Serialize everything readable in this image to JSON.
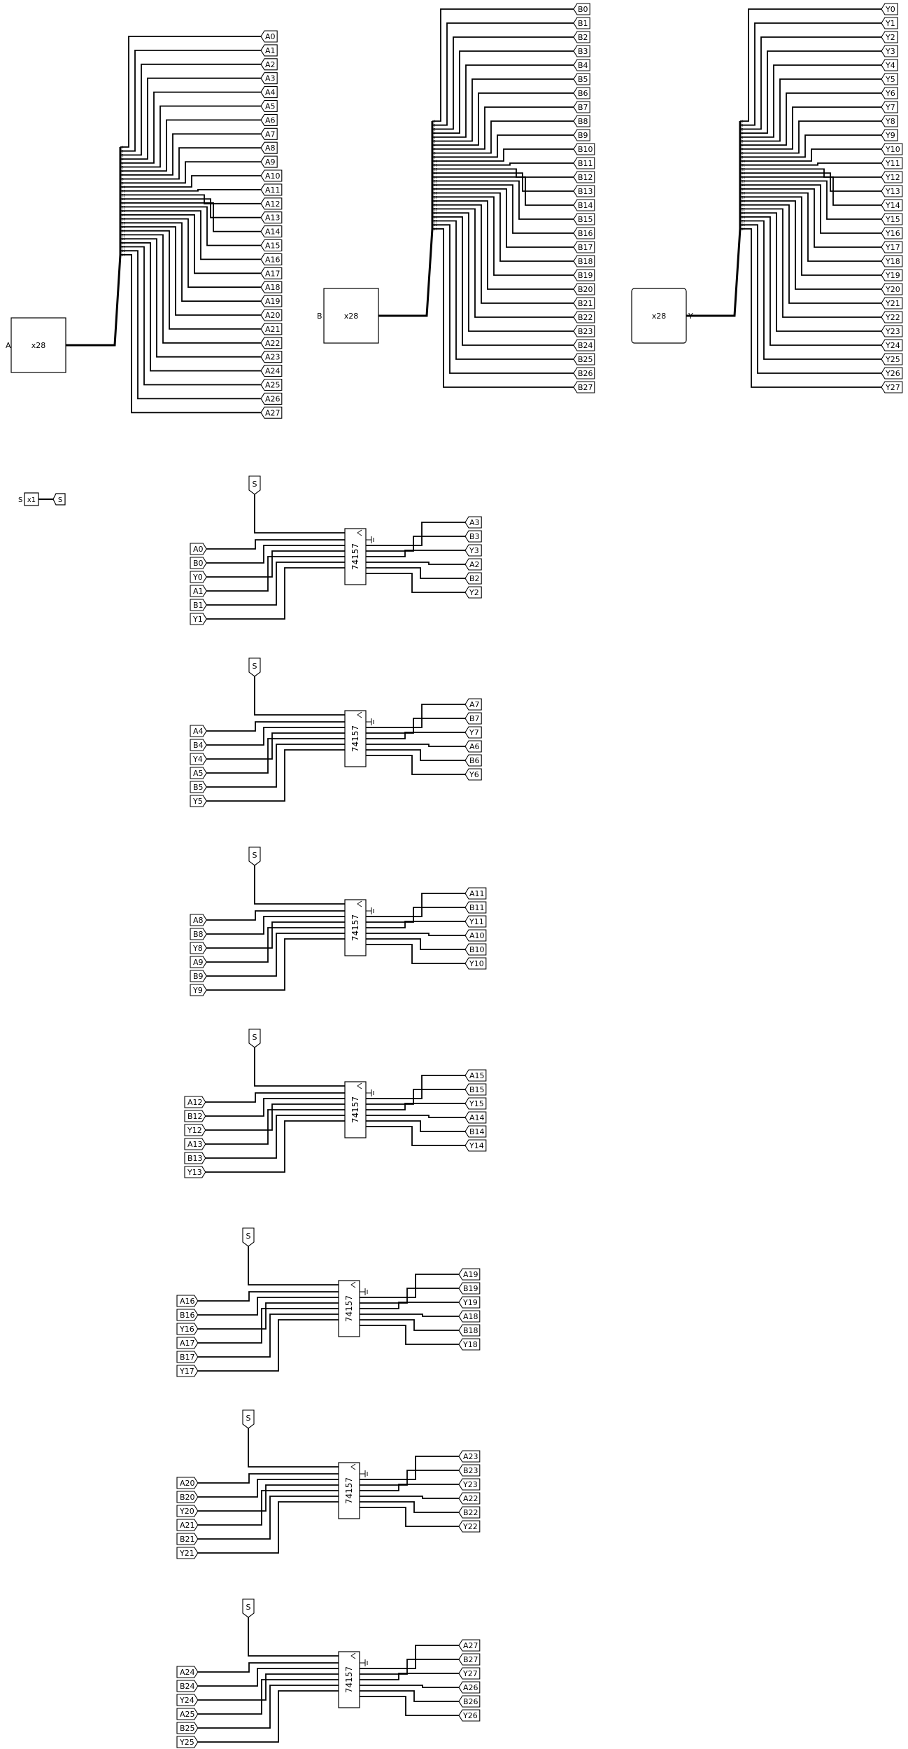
{
  "inputs": [
    {
      "id": "A",
      "pin_label": "A",
      "width_label": "x28",
      "prefix": "A"
    },
    {
      "id": "B",
      "pin_label": "B",
      "width_label": "x28",
      "prefix": "B"
    },
    {
      "id": "Y",
      "pin_label": "Y",
      "width_label": "x28",
      "prefix": "Y"
    }
  ],
  "select_input": {
    "pin_label": "S",
    "width_label": "x1",
    "tunnel_label": "S"
  },
  "chips": [
    {
      "label": "74157",
      "select_tunnel": "S",
      "left_tunnels": [
        "A0",
        "B0",
        "Y0",
        "A1",
        "B1",
        "Y1"
      ],
      "right_tunnels": [
        "A3",
        "B3",
        "Y3",
        "A2",
        "B2",
        "Y2"
      ]
    },
    {
      "label": "74157",
      "select_tunnel": "S",
      "left_tunnels": [
        "A4",
        "B4",
        "Y4",
        "A5",
        "B5",
        "Y5"
      ],
      "right_tunnels": [
        "A7",
        "B7",
        "Y7",
        "A6",
        "B6",
        "Y6"
      ]
    },
    {
      "label": "74157",
      "select_tunnel": "S",
      "left_tunnels": [
        "A8",
        "B8",
        "Y8",
        "A9",
        "B9",
        "Y9"
      ],
      "right_tunnels": [
        "A11",
        "B11",
        "Y11",
        "A10",
        "B10",
        "Y10"
      ]
    },
    {
      "label": "74157",
      "select_tunnel": "S",
      "left_tunnels": [
        "A12",
        "B12",
        "Y12",
        "A13",
        "B13",
        "Y13"
      ],
      "right_tunnels": [
        "A15",
        "B15",
        "Y15",
        "A14",
        "B14",
        "Y14"
      ]
    },
    {
      "label": "74157",
      "select_tunnel": "S",
      "left_tunnels": [
        "A16",
        "B16",
        "Y16",
        "A17",
        "B17",
        "Y17"
      ],
      "right_tunnels": [
        "A19",
        "B19",
        "Y19",
        "A18",
        "B18",
        "Y18"
      ]
    },
    {
      "label": "74157",
      "select_tunnel": "S",
      "left_tunnels": [
        "A20",
        "B20",
        "Y20",
        "A21",
        "B21",
        "Y21"
      ],
      "right_tunnels": [
        "A23",
        "B23",
        "Y23",
        "A22",
        "B22",
        "Y22"
      ]
    },
    {
      "label": "74157",
      "select_tunnel": "S",
      "left_tunnels": [
        "A24",
        "B24",
        "Y24",
        "A25",
        "B25",
        "Y25"
      ],
      "right_tunnels": [
        "A27",
        "B27",
        "Y27",
        "A26",
        "B26",
        "Y26"
      ]
    }
  ]
}
